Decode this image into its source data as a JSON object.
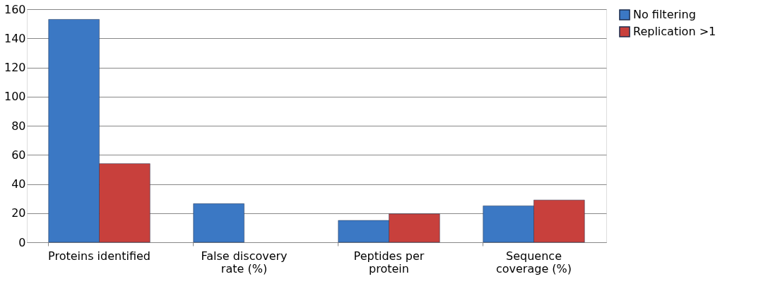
{
  "chart_data": {
    "type": "bar",
    "categories": [
      "Proteins identified",
      "False discovery rate (%)",
      "Peptides per protein",
      "Sequence coverage (%)"
    ],
    "series": [
      {
        "name": "No filtering",
        "color": "#3b78c4",
        "values": [
          153,
          26.5,
          15,
          25
        ]
      },
      {
        "name": "Replication >1",
        "color": "#c8403c",
        "values": [
          54,
          null,
          19.5,
          29
        ]
      }
    ],
    "ylim": [
      0,
      160
    ],
    "yticks": [
      0,
      20,
      40,
      60,
      80,
      100,
      120,
      140,
      160
    ],
    "grid": "y",
    "legend": "right"
  }
}
